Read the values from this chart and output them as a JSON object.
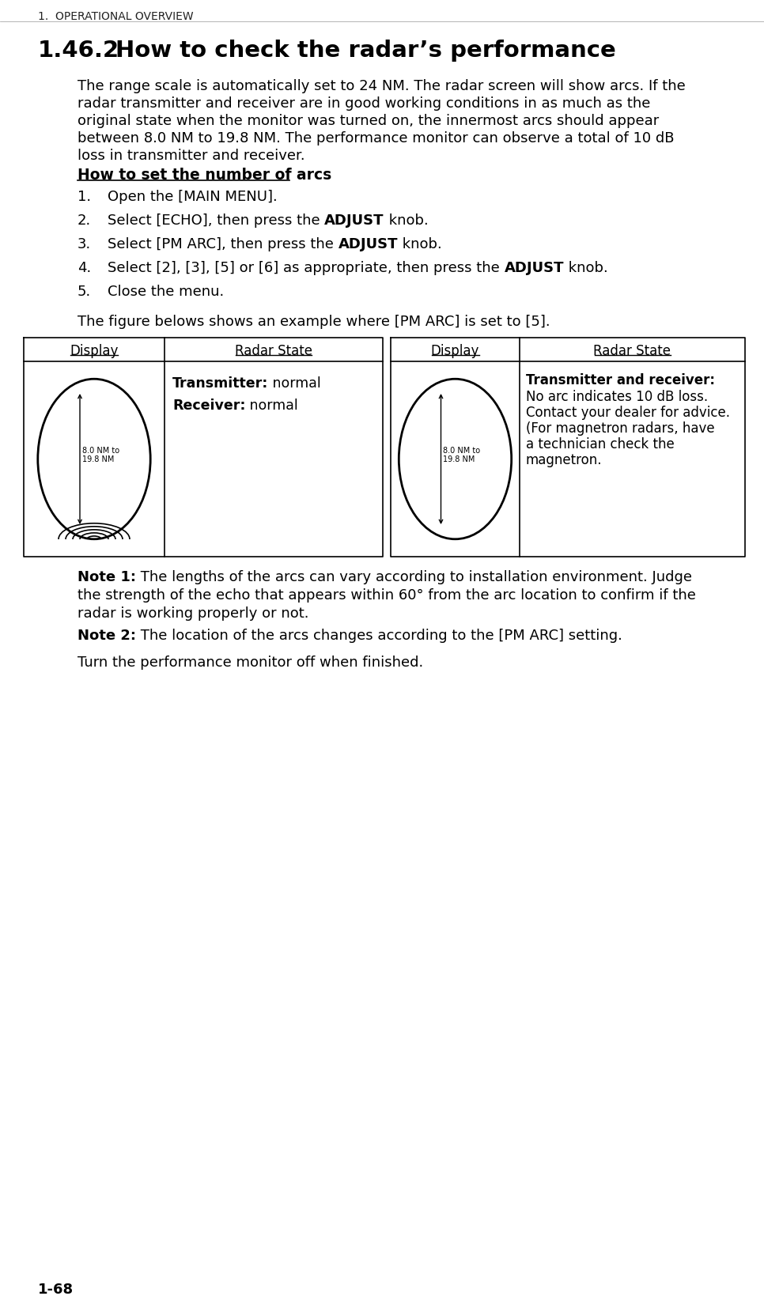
{
  "page_header": "1.  OPERATIONAL OVERVIEW",
  "section_num": "1.46.2",
  "section_title": "How to check the radar’s performance",
  "subsection_title": "How to set the number of arcs",
  "figure_caption": "The figure belows shows an example where [PM ARC] is set to [5].",
  "table_col1_header": "Display",
  "table_col2_header": "Radar State",
  "nm_label": "8.0 NM to\n19.8 NM",
  "note1_bold": "Note 1:",
  "note1_line1": " The lengths of the arcs can vary according to installation environment. Judge",
  "note1_line2": "the strength of the echo that appears within 60° from the arc location to confirm if the",
  "note1_line3": "radar is working properly or not.",
  "note2_bold": "Note 2:",
  "note2_text": " The location of the arcs changes according to the [PM ARC] setting.",
  "closing_text": "Turn the performance monitor off when finished.",
  "page_number": "1-68",
  "intro_lines": [
    "The range scale is automatically set to 24 NM. The radar screen will show arcs. If the",
    "radar transmitter and receiver are in good working conditions in as much as the",
    "original state when the monitor was turned on, the innermost arcs should appear",
    "between 8.0 NM to 19.8 NM. The performance monitor can observe a total of 10 dB",
    "loss in transmitter and receiver."
  ],
  "right_text_lines": [
    "No arc indicates 10 dB loss.",
    "Contact your dealer for advice.",
    "(For magnetron radars, have",
    "a technician check the",
    "magnetron."
  ],
  "bg_color": "#ffffff",
  "text_color": "#000000"
}
